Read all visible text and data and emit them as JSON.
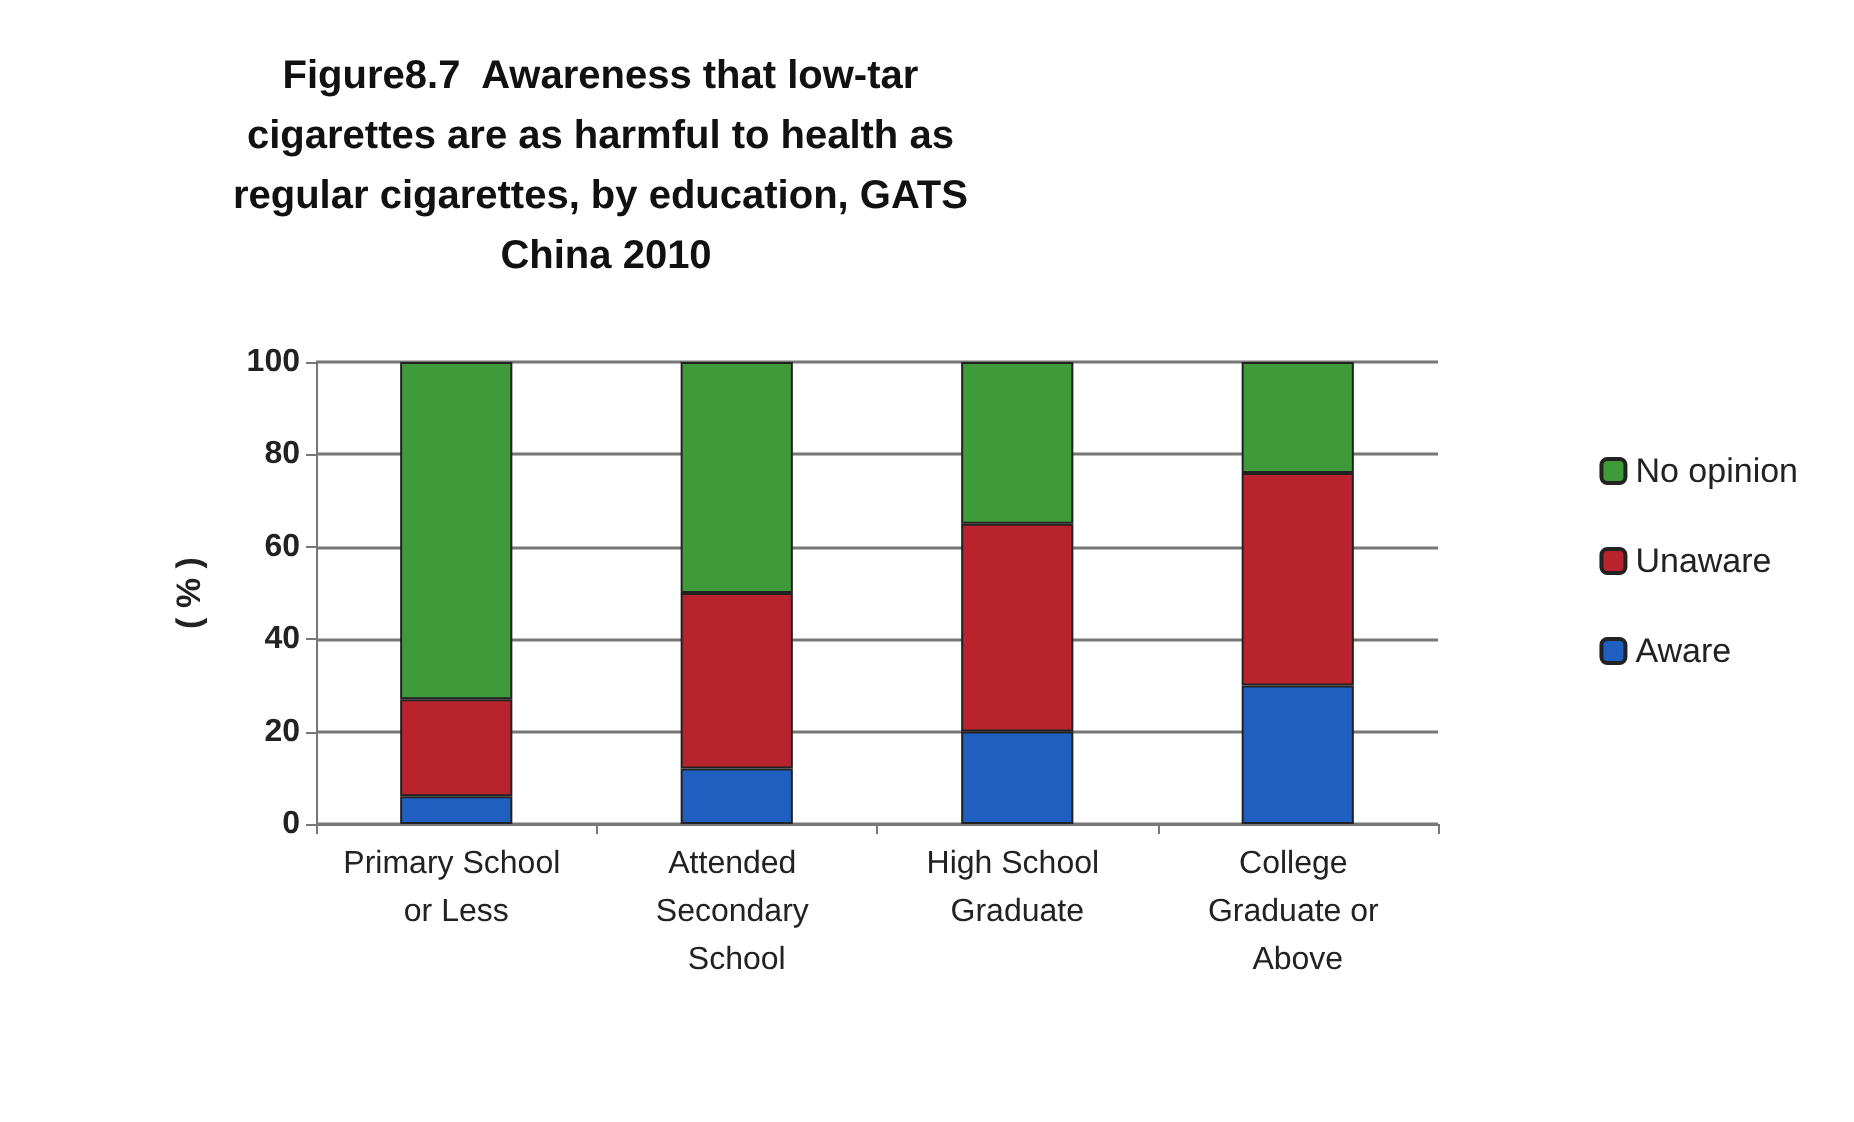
{
  "chart_data": {
    "type": "bar",
    "stacked": true,
    "title": "Figure8.7  Awareness that low-tar cigarettes are as harmful to health as regular cigarettes, by education, GATS China 2010",
    "ylabel": "( % )",
    "categories": [
      "Primary School or Less",
      "Attended Secondary School",
      "High School Graduate",
      "College Graduate or Above"
    ],
    "series": [
      {
        "name": "Aware",
        "color": "#1f5fc0",
        "values": [
          6,
          12,
          20,
          30
        ]
      },
      {
        "name": "Unaware",
        "color": "#b8232e",
        "values": [
          21,
          38,
          45,
          46
        ]
      },
      {
        "name": "No opinion",
        "color": "#3f9a3a",
        "values": [
          73,
          50,
          35,
          24
        ]
      }
    ],
    "ylim": [
      0,
      100
    ],
    "yticks": [
      0,
      20,
      40,
      60,
      80,
      100
    ],
    "grid": "y",
    "legend": "right"
  }
}
